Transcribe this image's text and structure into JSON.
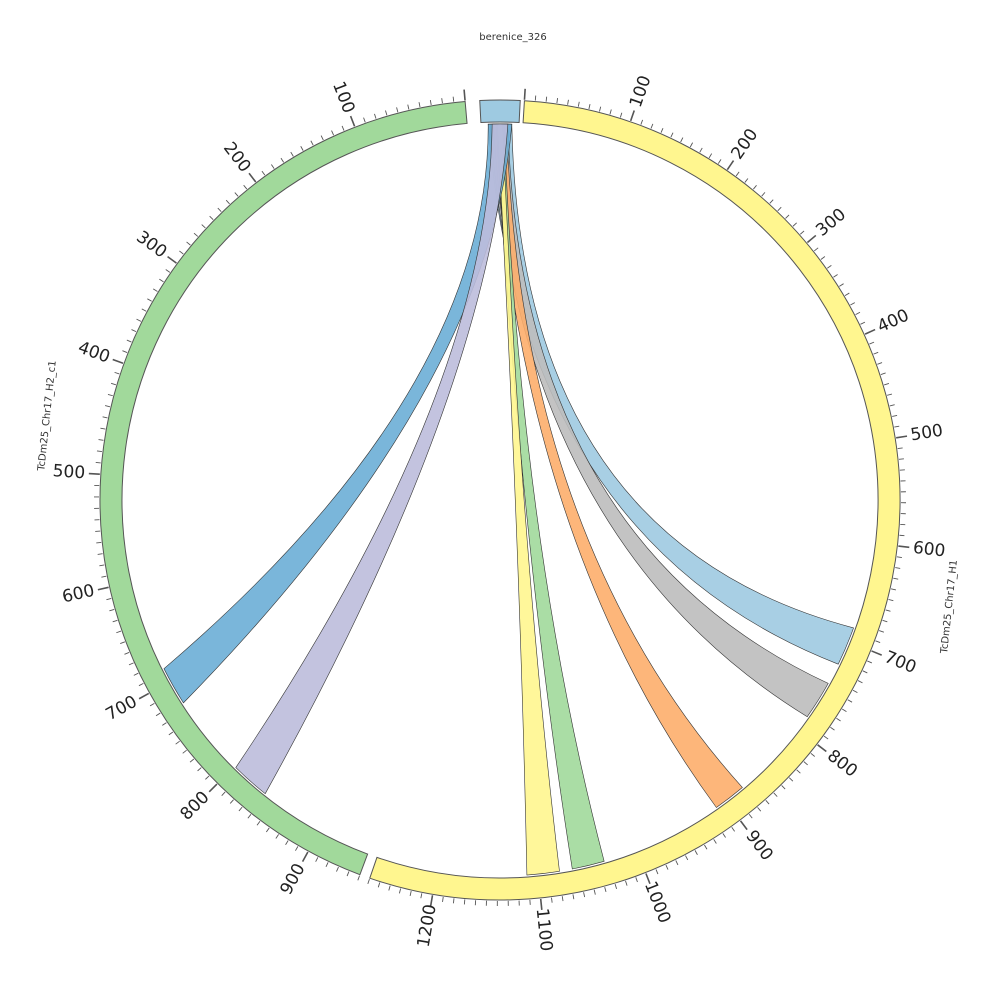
{
  "segments": [
    {
      "id": "berenice",
      "name": "berenice_326",
      "color": "#9ecae1",
      "tick_labels": []
    },
    {
      "id": "h1",
      "name": "TcDm25_Chr17_H1",
      "color": "#fff68f",
      "tick_labels": [
        "100",
        "200",
        "300",
        "400",
        "500",
        "600",
        "700",
        "800",
        "900",
        "1000",
        "1100",
        "1200"
      ]
    },
    {
      "id": "h2",
      "name": "TcDm25_Chr17_H2_c1",
      "color": "#a1d99b",
      "tick_labels": [
        "100",
        "200",
        "300",
        "400",
        "500",
        "600",
        "700",
        "800",
        "900"
      ]
    }
  ],
  "links": [
    {
      "name": "link-h1-700",
      "color": "#9ecae1",
      "target": "TcDm25_Chr17_H1",
      "target_pos": 705
    },
    {
      "name": "link-h1-800",
      "color": "#bdbdbd",
      "target": "TcDm25_Chr17_H1",
      "target_pos": 765
    },
    {
      "name": "link-h1-900",
      "color": "#fdae6b",
      "target": "TcDm25_Chr17_H1",
      "target_pos": 895
    },
    {
      "name": "link-h1-1050",
      "color": "#a1d99b",
      "target": "TcDm25_Chr17_H1",
      "target_pos": 1050
    },
    {
      "name": "link-h1-1100",
      "color": "#fff68f",
      "target": "TcDm25_Chr17_H1",
      "target_pos": 1095
    },
    {
      "name": "link-h2-700",
      "color": "#6baed6",
      "target": "TcDm25_Chr17_H2_c1",
      "target_pos": 705
    },
    {
      "name": "link-h2-820",
      "color": "#bcbddc",
      "target": "TcDm25_Chr17_H2_c1",
      "target_pos": 820
    }
  ]
}
